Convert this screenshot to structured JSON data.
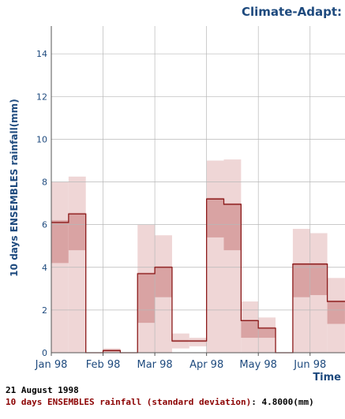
{
  "header": {
    "title": "Climate-Adapt: "
  },
  "chart_data": {
    "type": "step",
    "title": "Climate-Adapt: ",
    "xlabel": "Time",
    "ylabel": "10 days ENSEMBLES rainfall(mm)",
    "ylim": [
      0,
      15.3
    ],
    "yticks": [
      0,
      2,
      4,
      6,
      8,
      10,
      12,
      14
    ],
    "xtick_labels": [
      "Jan 98",
      "Feb 98",
      "Mar 98",
      "Apr 98",
      "May 98",
      "Jun 98"
    ],
    "grid": true,
    "colors": {
      "line": "#8b1a1a",
      "inner_band": "#d9a3a3",
      "outer_band": "#efd6d6",
      "axis_text": "#1e4a7e"
    },
    "series": [
      {
        "periods": [
          "Jan 98 (1)",
          "Jan 98 (2)",
          "Jan 98 (3)",
          "Feb 98 (1)",
          "Feb 98 (2)",
          "Feb 98 (3)",
          "Mar 98 (1)",
          "Mar 98 (2)",
          "Mar 98 (3)",
          "Apr 98 (1)",
          "Apr 98 (2)",
          "Apr 98 (3)",
          "May 98 (1)",
          "May 98 (2)",
          "May 98 (3)",
          "Jun 98 (1)",
          "Jun 98 (2)",
          "Jun 98 (3)"
        ],
        "mean": [
          6.1,
          6.5,
          0,
          0.1,
          0,
          3.7,
          4.0,
          0.55,
          0.55,
          7.2,
          6.95,
          1.5,
          1.15,
          0,
          4.15,
          4.15,
          2.4,
          2.4
        ],
        "sd_low": [
          4.2,
          4.8,
          0,
          0.05,
          0,
          1.4,
          2.6,
          0.5,
          0.5,
          5.4,
          4.8,
          0.7,
          0.7,
          0,
          2.6,
          2.7,
          1.35,
          1.35
        ],
        "sd_high": [
          6.2,
          6.55,
          0,
          0.15,
          0,
          3.75,
          4.05,
          0.6,
          0.6,
          7.25,
          7.0,
          1.55,
          1.2,
          0,
          4.2,
          4.2,
          2.45,
          2.45
        ],
        "range_low": [
          0,
          0,
          0,
          0,
          0,
          0,
          0,
          0.2,
          0.3,
          0,
          0,
          0,
          0,
          0,
          0,
          0,
          0,
          0
        ],
        "range_high": [
          8.0,
          8.25,
          0,
          0.2,
          0,
          6.0,
          5.5,
          0.9,
          0.7,
          9.0,
          9.05,
          2.4,
          1.65,
          0,
          5.8,
          5.6,
          3.5,
          3.5
        ]
      }
    ]
  },
  "footer": {
    "date": "21 August 1998",
    "value_label": "10 days ENSEMBLES rainfall (standard deviation)",
    "separator": ":",
    "value": "4.8000(mm)"
  }
}
